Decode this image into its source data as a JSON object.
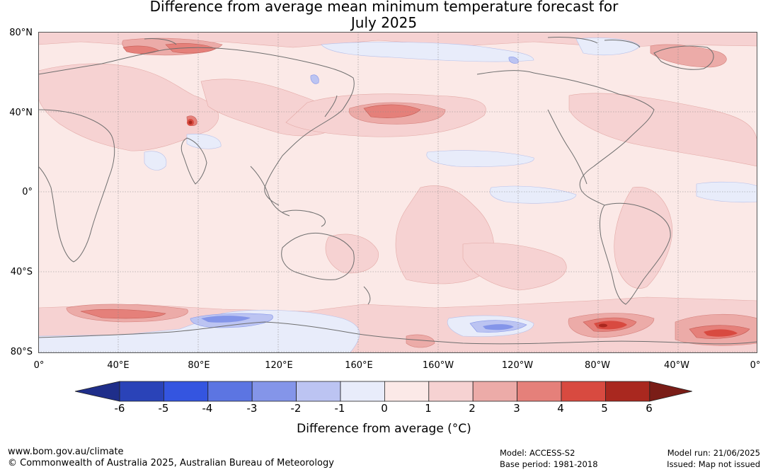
{
  "title": {
    "line1": "Difference from average mean minimum temperature forecast for",
    "line2": "July 2025"
  },
  "map": {
    "lat_labels": [
      "80°N",
      "40°N",
      "0°",
      "40°S",
      "80°S"
    ],
    "lon_labels": [
      "0°",
      "40°E",
      "80°E",
      "120°E",
      "160°E",
      "160°W",
      "120°W",
      "80°W",
      "40°W",
      "0°"
    ],
    "projection": "equirectangular, centred on 180°",
    "gridlines": true
  },
  "colorbar": {
    "ticks": [
      "-6",
      "-5",
      "-4",
      "-3",
      "-2",
      "-1",
      "0",
      "1",
      "2",
      "3",
      "4",
      "5",
      "6"
    ],
    "colors": [
      "#1f2e8a",
      "#2a43b8",
      "#3455e0",
      "#5c75e2",
      "#8495e9",
      "#bcc4f2",
      "#e8ecfa",
      "#fbe9e7",
      "#f6d2d2",
      "#ecaba8",
      "#e5807a",
      "#d84a40",
      "#a9281f",
      "#7a1d17"
    ],
    "label": "Difference from average (°C)"
  },
  "footer": {
    "website": "www.bom.gov.au/climate",
    "copyright": "© Commonwealth of Australia 2025, Australian Bureau of Meteorology",
    "model": "Model: ACCESS-S2",
    "base_period": "Base period: 1981-2018",
    "model_run": "Model run: 21/06/2025",
    "issued": "Issued: Map not issued"
  }
}
